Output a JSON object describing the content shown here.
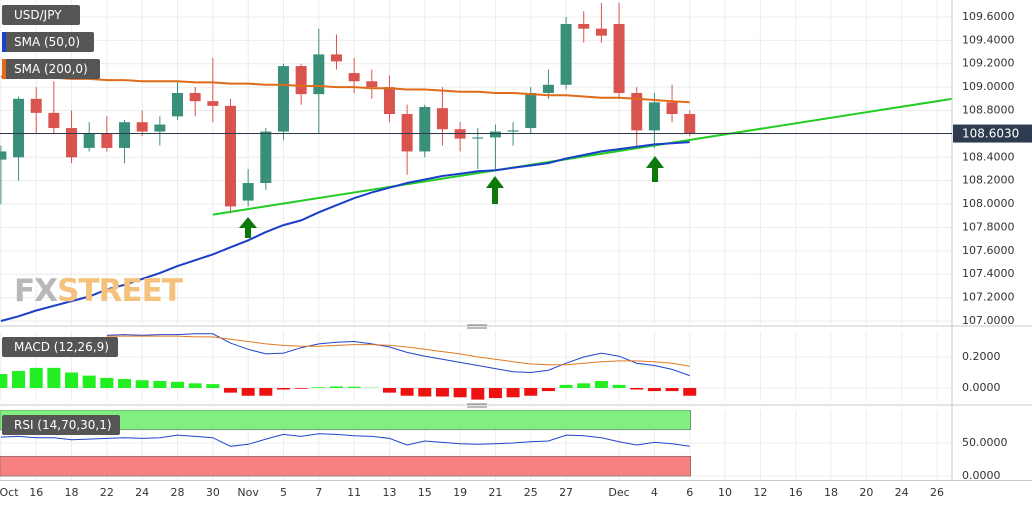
{
  "chart_data": [
    {
      "type": "candlestick",
      "title": "USD/JPY",
      "x": [
        0,
        1,
        2,
        3,
        4,
        5,
        6,
        7,
        8,
        9,
        10,
        11,
        12,
        13,
        14,
        15,
        16,
        17,
        18,
        19,
        20,
        21,
        22,
        23,
        24,
        25,
        26,
        27,
        28,
        29,
        30,
        31,
        32,
        33,
        34,
        35,
        36,
        37,
        38,
        39
      ],
      "open": [
        108.38,
        108.4,
        108.9,
        108.78,
        108.65,
        108.48,
        108.6,
        108.48,
        108.7,
        108.62,
        108.75,
        108.95,
        108.88,
        108.84,
        108.03,
        108.18,
        108.62,
        109.18,
        108.94,
        109.28,
        109.12,
        109.05,
        109.0,
        108.77,
        108.45,
        108.82,
        108.64,
        108.56,
        108.57,
        108.62,
        108.65,
        108.95,
        109.02,
        109.54,
        109.5,
        109.54,
        108.95,
        108.63,
        108.87,
        108.77
      ],
      "high": [
        108.5,
        108.92,
        109.0,
        109.05,
        108.8,
        108.7,
        108.75,
        108.72,
        108.8,
        108.75,
        109.05,
        109.0,
        109.25,
        108.9,
        108.3,
        108.65,
        109.2,
        109.2,
        109.5,
        109.45,
        109.25,
        109.15,
        109.1,
        108.85,
        108.85,
        109.0,
        108.7,
        108.65,
        108.68,
        108.7,
        109.0,
        109.15,
        109.6,
        109.65,
        109.72,
        109.72,
        109.0,
        108.95,
        109.02,
        108.8
      ],
      "low": [
        108.0,
        108.2,
        108.6,
        108.6,
        108.35,
        108.45,
        108.45,
        108.35,
        108.58,
        108.5,
        108.72,
        108.75,
        108.7,
        107.92,
        107.98,
        108.12,
        108.55,
        108.85,
        108.6,
        109.15,
        108.95,
        108.9,
        108.7,
        108.25,
        108.4,
        108.5,
        108.45,
        108.3,
        108.28,
        108.5,
        108.6,
        108.9,
        108.98,
        109.38,
        109.38,
        108.9,
        108.5,
        108.48,
        108.7,
        108.58
      ],
      "close": [
        108.45,
        108.9,
        108.78,
        108.65,
        108.4,
        108.6,
        108.48,
        108.7,
        108.62,
        108.68,
        108.95,
        108.88,
        108.84,
        107.98,
        108.18,
        108.62,
        109.18,
        108.94,
        109.28,
        109.22,
        109.05,
        109.0,
        108.77,
        108.45,
        108.83,
        108.64,
        108.56,
        108.57,
        108.62,
        108.63,
        108.95,
        109.02,
        109.54,
        109.5,
        109.44,
        108.95,
        108.63,
        108.87,
        108.77,
        108.6
      ],
      "up_color": "#3a8f7a",
      "down_color": "#d9534f",
      "series": [
        {
          "name": "SMA (50,0)",
          "color": "#1a3fc9",
          "values": [
            107.0,
            107.04,
            107.09,
            107.13,
            107.17,
            107.21,
            107.27,
            107.31,
            107.36,
            107.41,
            107.47,
            107.52,
            107.57,
            107.63,
            107.69,
            107.76,
            107.82,
            107.86,
            107.93,
            107.99,
            108.05,
            108.1,
            108.14,
            108.18,
            108.21,
            108.24,
            108.26,
            108.28,
            108.29,
            108.31,
            108.33,
            108.35,
            108.39,
            108.42,
            108.45,
            108.47,
            108.49,
            108.51,
            108.52,
            108.53
          ]
        },
        {
          "name": "SMA (200,0)",
          "color": "#e06b1a",
          "values": [
            109.09,
            109.09,
            109.08,
            109.08,
            109.07,
            109.07,
            109.06,
            109.06,
            109.05,
            109.05,
            109.05,
            109.04,
            109.04,
            109.03,
            109.03,
            109.02,
            109.02,
            109.01,
            109.01,
            109.0,
            109.0,
            108.99,
            108.99,
            108.98,
            108.98,
            108.97,
            108.96,
            108.96,
            108.95,
            108.95,
            108.94,
            108.93,
            108.93,
            108.92,
            108.91,
            108.91,
            108.9,
            108.89,
            108.88,
            108.87
          ]
        }
      ],
      "trendline": {
        "color": "#22cc22",
        "x": [
          12,
          53.85
        ],
        "values": [
          107.91,
          108.9
        ]
      },
      "last_price": {
        "value": 108.603,
        "label": "108.6030"
      },
      "watermark": [
        "FX",
        "STREET"
      ],
      "xlim": [
        -0.05,
        53.85
      ],
      "ylim": [
        106.966,
        109.745
      ],
      "yticks": [
        {
          "value": 107.0,
          "label": "107.0000"
        },
        {
          "value": 107.2,
          "label": "107.2000"
        },
        {
          "value": 107.4,
          "label": "107.4000"
        },
        {
          "value": 107.6,
          "label": "107.6000"
        },
        {
          "value": 107.8,
          "label": "107.8000"
        },
        {
          "value": 108.0,
          "label": "108.0000"
        },
        {
          "value": 108.2,
          "label": "108.2000"
        },
        {
          "value": 108.4,
          "label": "108.4000"
        },
        {
          "value": 108.6,
          "label": "108.6000"
        },
        {
          "value": 108.8,
          "label": "108.8000"
        },
        {
          "value": 109.0,
          "label": "109.0000"
        },
        {
          "value": 109.2,
          "label": "109.2000"
        },
        {
          "value": 109.4,
          "label": "109.4000"
        },
        {
          "value": 109.6,
          "label": "109.6000"
        }
      ],
      "grid": true
    },
    {
      "type": "macd",
      "title": "MACD (12,26,9)",
      "histogram": {
        "up_color": "#22ee22",
        "down_color": "#ee1111",
        "values": [
          0.09,
          0.11,
          0.13,
          0.13,
          0.1,
          0.08,
          0.065,
          0.058,
          0.05,
          0.045,
          0.04,
          0.03,
          0.025,
          -0.03,
          -0.05,
          -0.05,
          -0.01,
          -0.005,
          0.005,
          0.01,
          0.008,
          0.002,
          -0.03,
          -0.05,
          -0.055,
          -0.055,
          -0.06,
          -0.075,
          -0.065,
          -0.06,
          -0.05,
          -0.02,
          0.02,
          0.03,
          0.045,
          0.02,
          -0.01,
          -0.02,
          -0.02,
          -0.05
        ]
      },
      "series": [
        {
          "color": "#2244cc",
          "values": [
            null,
            null,
            null,
            null,
            null,
            null,
            0.34,
            0.345,
            0.34,
            0.345,
            0.345,
            0.35,
            0.35,
            0.29,
            0.25,
            0.22,
            0.225,
            0.26,
            0.285,
            0.295,
            0.3,
            0.285,
            0.265,
            0.23,
            0.205,
            0.185,
            0.165,
            0.145,
            0.125,
            0.105,
            0.1,
            0.115,
            0.16,
            0.2,
            0.225,
            0.205,
            0.16,
            0.145,
            0.12,
            0.08
          ]
        },
        {
          "color": "#e57a22",
          "values": [
            null,
            null,
            null,
            null,
            null,
            null,
            0.335,
            0.335,
            0.335,
            0.335,
            0.335,
            0.33,
            0.33,
            0.315,
            0.3,
            0.285,
            0.275,
            0.27,
            0.27,
            0.275,
            0.28,
            0.28,
            0.275,
            0.265,
            0.25,
            0.235,
            0.22,
            0.2,
            0.185,
            0.17,
            0.155,
            0.15,
            0.15,
            0.16,
            0.17,
            0.175,
            0.175,
            0.17,
            0.16,
            0.14
          ]
        }
      ],
      "xlim": [
        -0.05,
        53.85
      ],
      "ylim": [
        -0.084,
        0.368
      ],
      "yticks": [
        {
          "value": 0,
          "label": "0.0000"
        },
        {
          "value": 0.2,
          "label": "0.2000"
        }
      ],
      "grid": true
    },
    {
      "type": "rsi",
      "title": "RSI (14,70,30,1)",
      "series": [
        {
          "color": "#2244cc",
          "values": [
            59,
            60,
            58,
            58,
            55,
            56,
            57,
            58,
            57,
            58,
            62,
            60,
            58,
            45,
            48,
            56,
            63,
            60,
            64,
            63,
            61,
            60,
            57,
            47,
            53,
            51,
            49,
            48,
            49,
            50,
            52,
            53,
            62,
            61,
            58,
            52,
            47,
            51,
            49,
            45
          ]
        }
      ],
      "bands": [
        {
          "range": [
            70,
            100
          ],
          "color": "#80ee80"
        },
        {
          "range": [
            0,
            30
          ],
          "color": "#f78080"
        }
      ],
      "xlim": [
        -0.05,
        53.85
      ],
      "ylim": [
        -6,
        100
      ],
      "yticks": [
        {
          "value": 0,
          "label": "0.0000"
        },
        {
          "value": 50,
          "label": "50.0000"
        }
      ],
      "xticks": [
        {
          "value": 0,
          "label": "Oct"
        },
        {
          "value": 2,
          "label": "16"
        },
        {
          "value": 4,
          "label": "18"
        },
        {
          "value": 6,
          "label": "22"
        },
        {
          "value": 8,
          "label": "24"
        },
        {
          "value": 10,
          "label": "28"
        },
        {
          "value": 12,
          "label": "30"
        },
        {
          "value": 14,
          "label": "Nov"
        },
        {
          "value": 16,
          "label": "5"
        },
        {
          "value": 18,
          "label": "7"
        },
        {
          "value": 20,
          "label": "11"
        },
        {
          "value": 22,
          "label": "13"
        },
        {
          "value": 24,
          "label": "15"
        },
        {
          "value": 26,
          "label": "19"
        },
        {
          "value": 28,
          "label": "21"
        },
        {
          "value": 30,
          "label": "25"
        },
        {
          "value": 32,
          "label": "27"
        },
        {
          "value": 35,
          "label": "Dec"
        },
        {
          "value": 37,
          "label": "4"
        },
        {
          "value": 39,
          "label": "6"
        },
        {
          "value": 41,
          "label": "10"
        },
        {
          "value": 43,
          "label": "12"
        },
        {
          "value": 45,
          "label": "16"
        },
        {
          "value": 47,
          "label": "18"
        },
        {
          "value": 49,
          "label": "20"
        },
        {
          "value": 51,
          "label": "24"
        },
        {
          "value": 53,
          "label": "26"
        }
      ],
      "grid": true
    }
  ]
}
